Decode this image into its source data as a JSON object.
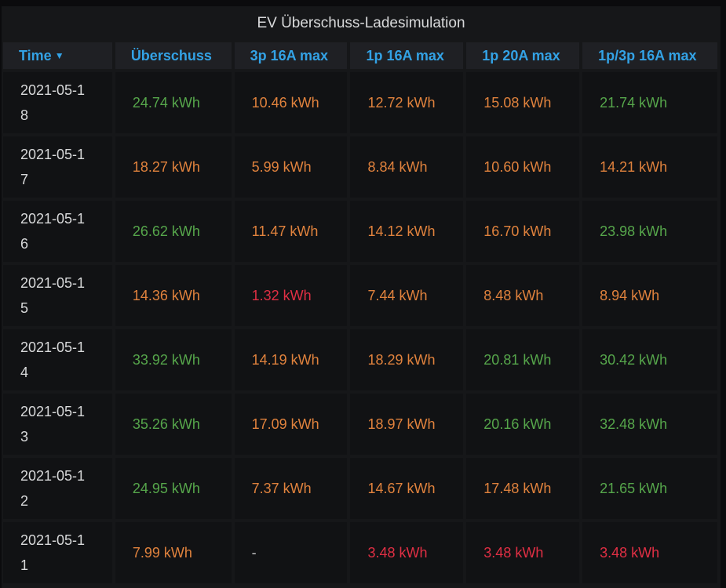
{
  "panel": {
    "title": "EV Überschuss-Ladesimulation"
  },
  "table": {
    "columns": [
      "Time",
      "Überschuss",
      "3p 16A max",
      "1p 16A max",
      "1p 20A max",
      "1p/3p 16A max"
    ],
    "sort_icon": "caret-down-icon",
    "colors": {
      "green": "#56a64b",
      "orange": "#e0823d",
      "red": "#e02f44",
      "header": "#33a2e5"
    },
    "rows": [
      {
        "time": "2021-05-18",
        "cells": [
          {
            "text": "24.74 kWh",
            "color": "green"
          },
          {
            "text": "10.46 kWh",
            "color": "orange"
          },
          {
            "text": "12.72 kWh",
            "color": "orange"
          },
          {
            "text": "15.08 kWh",
            "color": "orange"
          },
          {
            "text": "21.74 kWh",
            "color": "green"
          }
        ]
      },
      {
        "time": "2021-05-17",
        "cells": [
          {
            "text": "18.27 kWh",
            "color": "orange"
          },
          {
            "text": "5.99 kWh",
            "color": "orange"
          },
          {
            "text": "8.84 kWh",
            "color": "orange"
          },
          {
            "text": "10.60 kWh",
            "color": "orange"
          },
          {
            "text": "14.21 kWh",
            "color": "orange"
          }
        ]
      },
      {
        "time": "2021-05-16",
        "cells": [
          {
            "text": "26.62 kWh",
            "color": "green"
          },
          {
            "text": "11.47 kWh",
            "color": "orange"
          },
          {
            "text": "14.12 kWh",
            "color": "orange"
          },
          {
            "text": "16.70 kWh",
            "color": "orange"
          },
          {
            "text": "23.98 kWh",
            "color": "green"
          }
        ]
      },
      {
        "time": "2021-05-15",
        "cells": [
          {
            "text": "14.36 kWh",
            "color": "orange"
          },
          {
            "text": "1.32 kWh",
            "color": "red"
          },
          {
            "text": "7.44 kWh",
            "color": "orange"
          },
          {
            "text": "8.48 kWh",
            "color": "orange"
          },
          {
            "text": "8.94 kWh",
            "color": "orange"
          }
        ]
      },
      {
        "time": "2021-05-14",
        "cells": [
          {
            "text": "33.92 kWh",
            "color": "green"
          },
          {
            "text": "14.19 kWh",
            "color": "orange"
          },
          {
            "text": "18.29 kWh",
            "color": "orange"
          },
          {
            "text": "20.81 kWh",
            "color": "green"
          },
          {
            "text": "30.42 kWh",
            "color": "green"
          }
        ]
      },
      {
        "time": "2021-05-13",
        "cells": [
          {
            "text": "35.26 kWh",
            "color": "green"
          },
          {
            "text": "17.09 kWh",
            "color": "orange"
          },
          {
            "text": "18.97 kWh",
            "color": "orange"
          },
          {
            "text": "20.16 kWh",
            "color": "green"
          },
          {
            "text": "32.48 kWh",
            "color": "green"
          }
        ]
      },
      {
        "time": "2021-05-12",
        "cells": [
          {
            "text": "24.95 kWh",
            "color": "green"
          },
          {
            "text": "7.37 kWh",
            "color": "orange"
          },
          {
            "text": "14.67 kWh",
            "color": "orange"
          },
          {
            "text": "17.48 kWh",
            "color": "orange"
          },
          {
            "text": "21.65 kWh",
            "color": "green"
          }
        ]
      },
      {
        "time": "2021-05-11",
        "cells": [
          {
            "text": "7.99 kWh",
            "color": "orange"
          },
          {
            "text": "-",
            "color": "gray"
          },
          {
            "text": "3.48 kWh",
            "color": "red"
          },
          {
            "text": "3.48 kWh",
            "color": "red"
          },
          {
            "text": "3.48 kWh",
            "color": "red"
          }
        ]
      }
    ]
  }
}
